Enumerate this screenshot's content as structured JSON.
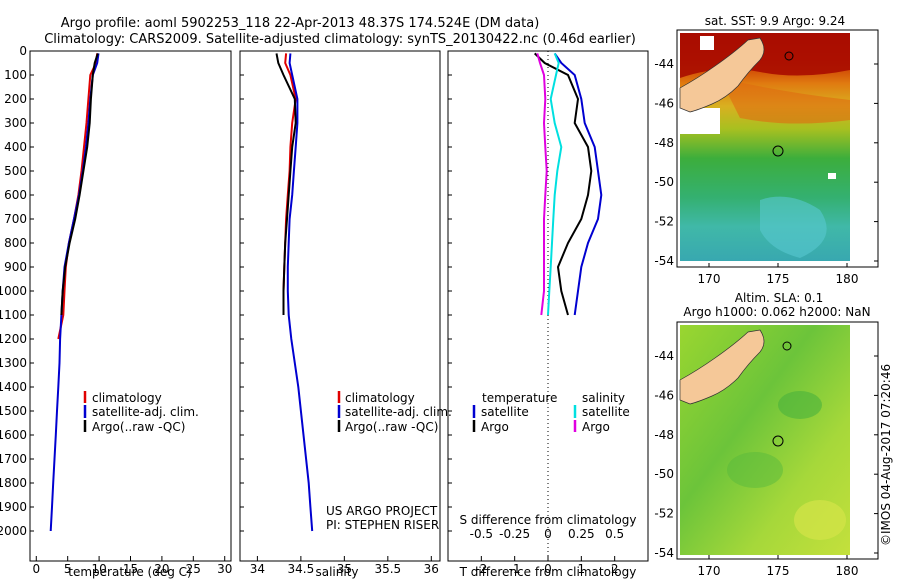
{
  "header": {
    "line1": "Argo profile: aoml 5902253_118 22-Apr-2013 48.37S 174.524E (DM data)",
    "line2": "Climatology: CARS2009. Satellite-adjusted climatology: synTS_20130422.nc (0.46d earlier)"
  },
  "colors": {
    "climatology": "#e00000",
    "satellite": "#0000d0",
    "argo": "#000000",
    "satellite_salinity": "#00e0e0",
    "argo_salinity": "#e000e0"
  },
  "chart_data": [
    {
      "type": "line",
      "panel": "temperature",
      "xlabel": "temperature (deg C)",
      "ylabel": "",
      "xlim": [
        -1,
        31
      ],
      "ylim": [
        2100,
        0
      ],
      "x_ticks": [
        0,
        5,
        10,
        15,
        20,
        25,
        30
      ],
      "y_ticks": [
        0,
        100,
        200,
        300,
        400,
        500,
        600,
        700,
        800,
        900,
        1000,
        1100,
        1200,
        1300,
        1400,
        1500,
        1600,
        1700,
        1800,
        1900,
        2000
      ],
      "legend": [
        "climatology",
        "satellite-adj. clim.",
        "Argo(..raw -QC)"
      ],
      "legend_position": "bottom-center",
      "series": [
        {
          "name": "climatology",
          "color": "#e00000",
          "points": [
            [
              9.7,
              10
            ],
            [
              9.5,
              50
            ],
            [
              8.6,
              100
            ],
            [
              8.3,
              200
            ],
            [
              8.0,
              300
            ],
            [
              7.6,
              400
            ],
            [
              7.2,
              500
            ],
            [
              6.7,
              600
            ],
            [
              6.0,
              700
            ],
            [
              5.2,
              800
            ],
            [
              4.7,
              900
            ],
            [
              4.5,
              1000
            ],
            [
              4.3,
              1100
            ],
            [
              3.5,
              1200
            ]
          ]
        },
        {
          "name": "satellite-adj. clim.",
          "color": "#0000d0",
          "points": [
            [
              9.9,
              10
            ],
            [
              9.7,
              50
            ],
            [
              9.0,
              100
            ],
            [
              8.6,
              200
            ],
            [
              8.3,
              300
            ],
            [
              7.9,
              400
            ],
            [
              7.4,
              500
            ],
            [
              6.8,
              600
            ],
            [
              6.0,
              700
            ],
            [
              5.2,
              800
            ],
            [
              4.5,
              900
            ],
            [
              4.2,
              1000
            ],
            [
              4.0,
              1100
            ],
            [
              3.8,
              1200
            ],
            [
              3.7,
              1300
            ],
            [
              3.5,
              1400
            ],
            [
              3.3,
              1500
            ],
            [
              3.1,
              1600
            ],
            [
              2.9,
              1700
            ],
            [
              2.7,
              1800
            ],
            [
              2.5,
              1900
            ],
            [
              2.3,
              2000
            ]
          ]
        },
        {
          "name": "Argo(..raw -QC)",
          "color": "#000000",
          "points": [
            [
              9.8,
              10
            ],
            [
              9.3,
              50
            ],
            [
              9.0,
              100
            ],
            [
              8.7,
              200
            ],
            [
              8.5,
              300
            ],
            [
              8.1,
              400
            ],
            [
              7.5,
              500
            ],
            [
              6.9,
              600
            ],
            [
              6.2,
              700
            ],
            [
              5.3,
              800
            ],
            [
              4.6,
              900
            ],
            [
              4.2,
              1000
            ],
            [
              4.0,
              1100
            ]
          ]
        }
      ],
      "annotation": []
    },
    {
      "type": "line",
      "panel": "salinity",
      "xlabel": "salinity",
      "ylabel": "",
      "xlim": [
        33.8,
        36.1
      ],
      "ylim": [
        2100,
        0
      ],
      "x_ticks": [
        34,
        34.5,
        35,
        35.5,
        36
      ],
      "legend": [
        "climatology",
        "satellite-adj. clim.",
        "Argo(..raw -QC)"
      ],
      "legend_position": "bottom-center",
      "series": [
        {
          "name": "climatology",
          "color": "#e00000",
          "points": [
            [
              34.33,
              10
            ],
            [
              34.32,
              50
            ],
            [
              34.38,
              100
            ],
            [
              34.44,
              200
            ],
            [
              34.4,
              300
            ],
            [
              34.38,
              400
            ],
            [
              34.37,
              500
            ],
            [
              34.35,
              600
            ],
            [
              34.33,
              700
            ],
            [
              34.32,
              800
            ],
            [
              34.31,
              900
            ],
            [
              34.3,
              1000
            ],
            [
              34.3,
              1100
            ]
          ]
        },
        {
          "name": "satellite-adj. clim.",
          "color": "#0000d0",
          "points": [
            [
              34.38,
              10
            ],
            [
              34.37,
              50
            ],
            [
              34.4,
              100
            ],
            [
              34.46,
              200
            ],
            [
              34.46,
              300
            ],
            [
              34.44,
              400
            ],
            [
              34.42,
              500
            ],
            [
              34.4,
              600
            ],
            [
              34.37,
              700
            ],
            [
              34.36,
              800
            ],
            [
              34.35,
              900
            ],
            [
              34.35,
              1000
            ],
            [
              34.36,
              1100
            ],
            [
              34.39,
              1200
            ],
            [
              34.43,
              1300
            ],
            [
              34.47,
              1400
            ],
            [
              34.5,
              1500
            ],
            [
              34.53,
              1600
            ],
            [
              34.56,
              1700
            ],
            [
              34.59,
              1800
            ],
            [
              34.61,
              1900
            ],
            [
              34.63,
              2000
            ]
          ]
        },
        {
          "name": "Argo(..raw -QC)",
          "color": "#000000",
          "points": [
            [
              34.22,
              10
            ],
            [
              34.24,
              50
            ],
            [
              34.3,
              100
            ],
            [
              34.43,
              200
            ],
            [
              34.44,
              300
            ],
            [
              34.4,
              400
            ],
            [
              34.38,
              500
            ],
            [
              34.36,
              600
            ],
            [
              34.34,
              700
            ],
            [
              34.32,
              800
            ],
            [
              34.31,
              900
            ],
            [
              34.3,
              1000
            ],
            [
              34.3,
              1100
            ]
          ]
        }
      ],
      "annotation": [
        "US ARGO PROJECT",
        "PI: STEPHEN RISER"
      ]
    },
    {
      "type": "line",
      "panel": "difference",
      "xlabel": "T difference from climatology",
      "top_xlabel": "S difference from climatology",
      "xlim": [
        -3,
        3
      ],
      "ylim": [
        2100,
        0
      ],
      "x_ticks": [
        -2,
        -1,
        0,
        1,
        2
      ],
      "top_ticks": [
        "-0.5",
        "-0.25",
        "0",
        "0.25",
        "0.5"
      ],
      "legend_headers": [
        "temperature",
        "salinity"
      ],
      "legend_temperature": [
        "satellite",
        "Argo"
      ],
      "legend_salinity": [
        "satellite",
        "Argo"
      ],
      "legend_position": "bottom-center",
      "series": [
        {
          "name": "satellite",
          "group": "temperature",
          "color": "#0000d0",
          "points": [
            [
              0.2,
              10
            ],
            [
              0.4,
              50
            ],
            [
              0.8,
              100
            ],
            [
              1.0,
              200
            ],
            [
              1.1,
              300
            ],
            [
              1.4,
              400
            ],
            [
              1.5,
              500
            ],
            [
              1.6,
              600
            ],
            [
              1.5,
              700
            ],
            [
              1.2,
              800
            ],
            [
              1.0,
              900
            ],
            [
              0.9,
              1000
            ],
            [
              0.8,
              1100
            ]
          ]
        },
        {
          "name": "Argo",
          "group": "temperature",
          "color": "#000000",
          "points": [
            [
              -0.4,
              10
            ],
            [
              -0.1,
              50
            ],
            [
              0.6,
              100
            ],
            [
              0.9,
              200
            ],
            [
              0.8,
              300
            ],
            [
              1.2,
              400
            ],
            [
              1.3,
              500
            ],
            [
              1.2,
              600
            ],
            [
              1.0,
              700
            ],
            [
              0.6,
              800
            ],
            [
              0.3,
              900
            ],
            [
              0.4,
              1000
            ],
            [
              0.6,
              1100
            ]
          ]
        },
        {
          "name": "satellite",
          "group": "salinity",
          "color": "#00e0e0",
          "points": [
            [
              0.05,
              10
            ],
            [
              0.08,
              50
            ],
            [
              0.06,
              100
            ],
            [
              0.02,
              200
            ],
            [
              0.05,
              300
            ],
            [
              0.1,
              400
            ],
            [
              0.07,
              500
            ],
            [
              0.05,
              600
            ],
            [
              0.04,
              700
            ],
            [
              0.03,
              800
            ],
            [
              0.02,
              900
            ],
            [
              0.01,
              1000
            ],
            [
              0.0,
              1100
            ]
          ]
        },
        {
          "name": "Argo",
          "group": "salinity",
          "color": "#e000e0",
          "points": [
            [
              -0.08,
              10
            ],
            [
              -0.06,
              50
            ],
            [
              -0.03,
              100
            ],
            [
              -0.02,
              200
            ],
            [
              -0.03,
              300
            ],
            [
              -0.02,
              400
            ],
            [
              -0.01,
              500
            ],
            [
              -0.02,
              600
            ],
            [
              -0.03,
              700
            ],
            [
              -0.03,
              800
            ],
            [
              -0.03,
              900
            ],
            [
              -0.03,
              1000
            ],
            [
              -0.05,
              1100
            ]
          ]
        }
      ]
    },
    {
      "type": "heatmap",
      "panel": "sst_map",
      "title": "sat. SST: 9.9 Argo: 9.24",
      "x_ticks": [
        "170",
        "175",
        "180"
      ],
      "y_ticks": [
        "-44",
        "-46",
        "-48",
        "-50",
        "-52",
        "-54"
      ]
    },
    {
      "type": "heatmap",
      "panel": "sla_map",
      "title_line1": "Altim. SLA: 0.1",
      "title_line2": "Argo h1000: 0.062 h2000: NaN",
      "x_ticks": [
        "170",
        "175",
        "180"
      ],
      "y_ticks": [
        "-44",
        "-46",
        "-48",
        "-50",
        "-52",
        "-54"
      ]
    }
  ],
  "footer_stamp": "©IMOS 04-Aug-2017 07:20:46"
}
